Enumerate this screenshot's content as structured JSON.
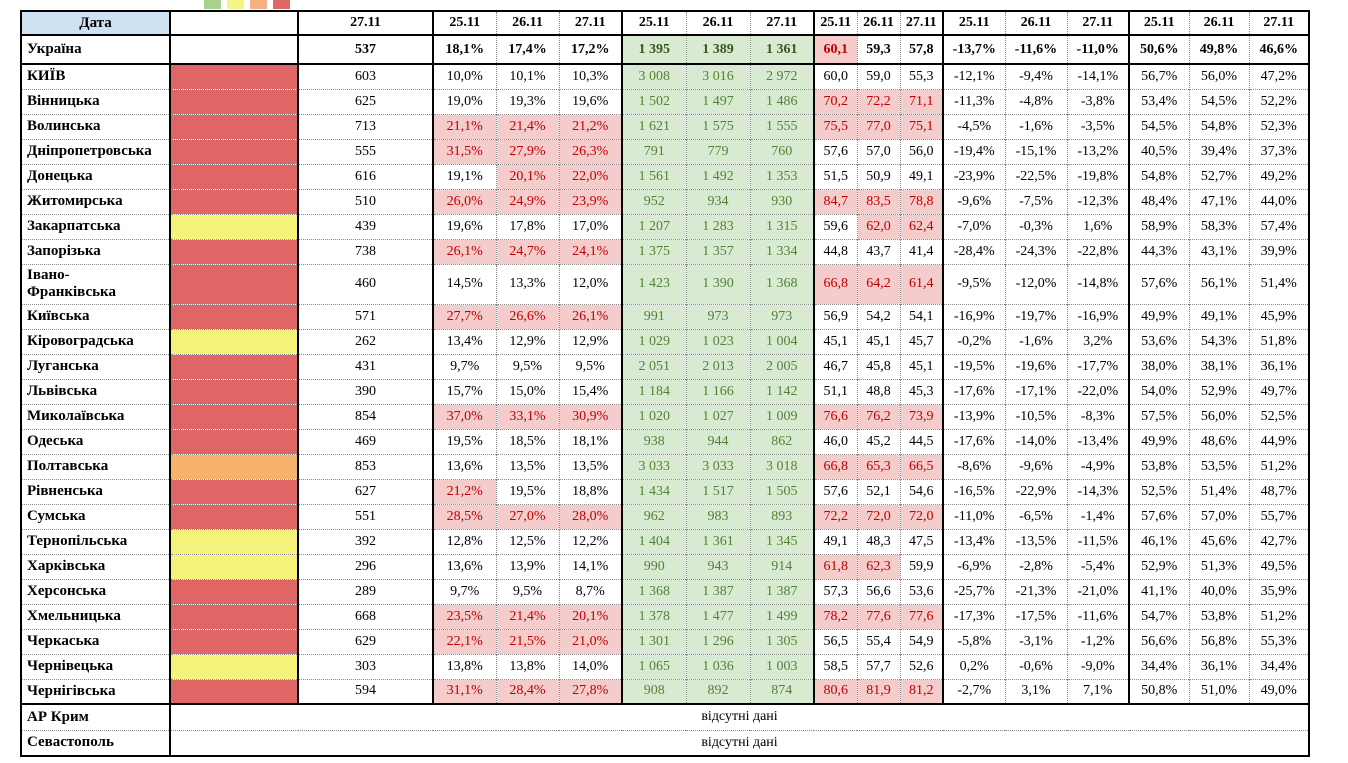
{
  "colors": {
    "header_blue": "#cfe2f3",
    "highlight_pink_bg": "#f4cccc",
    "highlight_red_text": "#c00000",
    "green_bg": "#d9ead3",
    "green_text": "#548235",
    "green_text_bold": "#375623",
    "fill_red": "#e06666",
    "fill_yellow": "#f4f27b",
    "fill_orange": "#f6b26b"
  },
  "chart_data": {
    "type": "table",
    "title": "",
    "header": {
      "date_label": "Дата",
      "single_date": "27.11",
      "group_dates": [
        "25.11",
        "26.11",
        "27.11"
      ],
      "num_groups": 5
    },
    "legend_swatches": [
      "#a9d18e",
      "#f5f584",
      "#f4b183",
      "#e06666"
    ],
    "fill_colors": {
      "red": "#e06666",
      "yellow": "#f4f27b",
      "orange": "#f6b26b"
    },
    "missing_data_text": "відсутні дані",
    "rows": [
      {
        "name": "Україна",
        "bold": true,
        "fill": null,
        "single": "537",
        "pct1": [
          "18,1%",
          "17,4%",
          "17,2%"
        ],
        "pct1_hl": [
          0,
          0,
          0
        ],
        "green": [
          "1 395",
          "1 389",
          "1 361"
        ],
        "dec": [
          "60,1",
          "59,3",
          "57,8"
        ],
        "dec_hl": [
          1,
          0,
          0
        ],
        "negpct": [
          "-13,7%",
          "-11,6%",
          "-11,0%"
        ],
        "pct2": [
          "50,6%",
          "49,8%",
          "46,6%"
        ]
      },
      {
        "name": "КИЇВ",
        "fill": "red",
        "single": "603",
        "pct1": [
          "10,0%",
          "10,1%",
          "10,3%"
        ],
        "pct1_hl": [
          0,
          0,
          0
        ],
        "green": [
          "3 008",
          "3 016",
          "2 972"
        ],
        "dec": [
          "60,0",
          "59,0",
          "55,3"
        ],
        "dec_hl": [
          0,
          0,
          0
        ],
        "negpct": [
          "-12,1%",
          "-9,4%",
          "-14,1%"
        ],
        "pct2": [
          "56,7%",
          "56,0%",
          "47,2%"
        ]
      },
      {
        "name": "Вінницька",
        "fill": "red",
        "single": "625",
        "pct1": [
          "19,0%",
          "19,3%",
          "19,6%"
        ],
        "pct1_hl": [
          0,
          0,
          0
        ],
        "green": [
          "1 502",
          "1 497",
          "1 486"
        ],
        "dec": [
          "70,2",
          "72,2",
          "71,1"
        ],
        "dec_hl": [
          1,
          1,
          1
        ],
        "negpct": [
          "-11,3%",
          "-4,8%",
          "-3,8%"
        ],
        "pct2": [
          "53,4%",
          "54,5%",
          "52,2%"
        ]
      },
      {
        "name": "Волинська",
        "fill": "red",
        "single": "713",
        "pct1": [
          "21,1%",
          "21,4%",
          "21,2%"
        ],
        "pct1_hl": [
          1,
          1,
          1
        ],
        "green": [
          "1 621",
          "1 575",
          "1 555"
        ],
        "dec": [
          "75,5",
          "77,0",
          "75,1"
        ],
        "dec_hl": [
          1,
          1,
          1
        ],
        "negpct": [
          "-4,5%",
          "-1,6%",
          "-3,5%"
        ],
        "pct2": [
          "54,5%",
          "54,8%",
          "52,3%"
        ]
      },
      {
        "name": "Дніпропетровська",
        "fill": "red",
        "single": "555",
        "pct1": [
          "31,5%",
          "27,9%",
          "26,3%"
        ],
        "pct1_hl": [
          1,
          1,
          1
        ],
        "green": [
          "791",
          "779",
          "760"
        ],
        "dec": [
          "57,6",
          "57,0",
          "56,0"
        ],
        "dec_hl": [
          0,
          0,
          0
        ],
        "negpct": [
          "-19,4%",
          "-15,1%",
          "-13,2%"
        ],
        "pct2": [
          "40,5%",
          "39,4%",
          "37,3%"
        ]
      },
      {
        "name": "Донецька",
        "fill": "red",
        "single": "616",
        "pct1": [
          "19,1%",
          "20,1%",
          "22,0%"
        ],
        "pct1_hl": [
          0,
          1,
          1
        ],
        "green": [
          "1 561",
          "1 492",
          "1 353"
        ],
        "dec": [
          "51,5",
          "50,9",
          "49,1"
        ],
        "dec_hl": [
          0,
          0,
          0
        ],
        "negpct": [
          "-23,9%",
          "-22,5%",
          "-19,8%"
        ],
        "pct2": [
          "54,8%",
          "52,7%",
          "49,2%"
        ]
      },
      {
        "name": "Житомирська",
        "fill": "red",
        "single": "510",
        "pct1": [
          "26,0%",
          "24,9%",
          "23,9%"
        ],
        "pct1_hl": [
          1,
          1,
          1
        ],
        "green": [
          "952",
          "934",
          "930"
        ],
        "dec": [
          "84,7",
          "83,5",
          "78,8"
        ],
        "dec_hl": [
          1,
          1,
          1
        ],
        "negpct": [
          "-9,6%",
          "-7,5%",
          "-12,3%"
        ],
        "pct2": [
          "48,4%",
          "47,1%",
          "44,0%"
        ]
      },
      {
        "name": "Закарпатська",
        "fill": "yellow",
        "single": "439",
        "pct1": [
          "19,6%",
          "17,8%",
          "17,0%"
        ],
        "pct1_hl": [
          0,
          0,
          0
        ],
        "green": [
          "1 207",
          "1 283",
          "1 315"
        ],
        "dec": [
          "59,6",
          "62,0",
          "62,4"
        ],
        "dec_hl": [
          0,
          1,
          1
        ],
        "negpct": [
          "-7,0%",
          "-0,3%",
          "1,6%"
        ],
        "pct2": [
          "58,9%",
          "58,3%",
          "57,4%"
        ]
      },
      {
        "name": "Запорізька",
        "fill": "red",
        "single": "738",
        "pct1": [
          "26,1%",
          "24,7%",
          "24,1%"
        ],
        "pct1_hl": [
          1,
          1,
          1
        ],
        "green": [
          "1 375",
          "1 357",
          "1 334"
        ],
        "dec": [
          "44,8",
          "43,7",
          "41,4"
        ],
        "dec_hl": [
          0,
          0,
          0
        ],
        "negpct": [
          "-28,4%",
          "-24,3%",
          "-22,8%"
        ],
        "pct2": [
          "44,3%",
          "43,1%",
          "39,9%"
        ]
      },
      {
        "name": "Івано-\nФранківська",
        "tall": true,
        "fill": "red",
        "single": "460",
        "pct1": [
          "14,5%",
          "13,3%",
          "12,0%"
        ],
        "pct1_hl": [
          0,
          0,
          0
        ],
        "green": [
          "1 423",
          "1 390",
          "1 368"
        ],
        "dec": [
          "66,8",
          "64,2",
          "61,4"
        ],
        "dec_hl": [
          1,
          1,
          1
        ],
        "negpct": [
          "-9,5%",
          "-12,0%",
          "-14,8%"
        ],
        "pct2": [
          "57,6%",
          "56,1%",
          "51,4%"
        ]
      },
      {
        "name": "Київська",
        "fill": "red",
        "single": "571",
        "pct1": [
          "27,7%",
          "26,6%",
          "26,1%"
        ],
        "pct1_hl": [
          1,
          1,
          1
        ],
        "green": [
          "991",
          "973",
          "973"
        ],
        "dec": [
          "56,9",
          "54,2",
          "54,1"
        ],
        "dec_hl": [
          0,
          0,
          0
        ],
        "negpct": [
          "-16,9%",
          "-19,7%",
          "-16,9%"
        ],
        "pct2": [
          "49,9%",
          "49,1%",
          "45,9%"
        ]
      },
      {
        "name": "Кіровоградська",
        "fill": "yellow",
        "single": "262",
        "pct1": [
          "13,4%",
          "12,9%",
          "12,9%"
        ],
        "pct1_hl": [
          0,
          0,
          0
        ],
        "green": [
          "1 029",
          "1 023",
          "1 004"
        ],
        "dec": [
          "45,1",
          "45,1",
          "45,7"
        ],
        "dec_hl": [
          0,
          0,
          0
        ],
        "negpct": [
          "-0,2%",
          "-1,6%",
          "3,2%"
        ],
        "pct2": [
          "53,6%",
          "54,3%",
          "51,8%"
        ]
      },
      {
        "name": "Луганська",
        "fill": "red",
        "single": "431",
        "pct1": [
          "9,7%",
          "9,5%",
          "9,5%"
        ],
        "pct1_hl": [
          0,
          0,
          0
        ],
        "green": [
          "2 051",
          "2 013",
          "2 005"
        ],
        "dec": [
          "46,7",
          "45,8",
          "45,1"
        ],
        "dec_hl": [
          0,
          0,
          0
        ],
        "negpct": [
          "-19,5%",
          "-19,6%",
          "-17,7%"
        ],
        "pct2": [
          "38,0%",
          "38,1%",
          "36,1%"
        ]
      },
      {
        "name": "Львівська",
        "fill": "red",
        "single": "390",
        "pct1": [
          "15,7%",
          "15,0%",
          "15,4%"
        ],
        "pct1_hl": [
          0,
          0,
          0
        ],
        "green": [
          "1 184",
          "1 166",
          "1 142"
        ],
        "dec": [
          "51,1",
          "48,8",
          "45,3"
        ],
        "dec_hl": [
          0,
          0,
          0
        ],
        "negpct": [
          "-17,6%",
          "-17,1%",
          "-22,0%"
        ],
        "pct2": [
          "54,0%",
          "52,9%",
          "49,7%"
        ]
      },
      {
        "name": "Миколаївська",
        "fill": "red",
        "single": "854",
        "pct1": [
          "37,0%",
          "33,1%",
          "30,9%"
        ],
        "pct1_hl": [
          1,
          1,
          1
        ],
        "green": [
          "1 020",
          "1 027",
          "1 009"
        ],
        "dec": [
          "76,6",
          "76,2",
          "73,9"
        ],
        "dec_hl": [
          1,
          1,
          1
        ],
        "negpct": [
          "-13,9%",
          "-10,5%",
          "-8,3%"
        ],
        "pct2": [
          "57,5%",
          "56,0%",
          "52,5%"
        ]
      },
      {
        "name": "Одеська",
        "fill": "red",
        "single": "469",
        "pct1": [
          "19,5%",
          "18,5%",
          "18,1%"
        ],
        "pct1_hl": [
          0,
          0,
          0
        ],
        "green": [
          "938",
          "944",
          "862"
        ],
        "dec": [
          "46,0",
          "45,2",
          "44,5"
        ],
        "dec_hl": [
          0,
          0,
          0
        ],
        "negpct": [
          "-17,6%",
          "-14,0%",
          "-13,4%"
        ],
        "pct2": [
          "49,9%",
          "48,6%",
          "44,9%"
        ]
      },
      {
        "name": "Полтавська",
        "fill": "orange",
        "single": "853",
        "pct1": [
          "13,6%",
          "13,5%",
          "13,5%"
        ],
        "pct1_hl": [
          0,
          0,
          0
        ],
        "green": [
          "3 033",
          "3 033",
          "3 018"
        ],
        "dec": [
          "66,8",
          "65,3",
          "66,5"
        ],
        "dec_hl": [
          1,
          1,
          1
        ],
        "negpct": [
          "-8,6%",
          "-9,6%",
          "-4,9%"
        ],
        "pct2": [
          "53,8%",
          "53,5%",
          "51,2%"
        ]
      },
      {
        "name": "Рівненська",
        "fill": "red",
        "single": "627",
        "pct1": [
          "21,2%",
          "19,5%",
          "18,8%"
        ],
        "pct1_hl": [
          1,
          0,
          0
        ],
        "green": [
          "1 434",
          "1 517",
          "1 505"
        ],
        "dec": [
          "57,6",
          "52,1",
          "54,6"
        ],
        "dec_hl": [
          0,
          0,
          0
        ],
        "negpct": [
          "-16,5%",
          "-22,9%",
          "-14,3%"
        ],
        "pct2": [
          "52,5%",
          "51,4%",
          "48,7%"
        ]
      },
      {
        "name": "Сумська",
        "fill": "red",
        "single": "551",
        "pct1": [
          "28,5%",
          "27,0%",
          "28,0%"
        ],
        "pct1_hl": [
          1,
          1,
          1
        ],
        "green": [
          "962",
          "983",
          "893"
        ],
        "dec": [
          "72,2",
          "72,0",
          "72,0"
        ],
        "dec_hl": [
          1,
          1,
          1
        ],
        "negpct": [
          "-11,0%",
          "-6,5%",
          "-1,4%"
        ],
        "pct2": [
          "57,6%",
          "57,0%",
          "55,7%"
        ]
      },
      {
        "name": "Тернопільська",
        "fill": "yellow",
        "single": "392",
        "pct1": [
          "12,8%",
          "12,5%",
          "12,2%"
        ],
        "pct1_hl": [
          0,
          0,
          0
        ],
        "green": [
          "1 404",
          "1 361",
          "1 345"
        ],
        "dec": [
          "49,1",
          "48,3",
          "47,5"
        ],
        "dec_hl": [
          0,
          0,
          0
        ],
        "negpct": [
          "-13,4%",
          "-13,5%",
          "-11,5%"
        ],
        "pct2": [
          "46,1%",
          "45,6%",
          "42,7%"
        ]
      },
      {
        "name": "Харківська",
        "fill": "yellow",
        "single": "296",
        "pct1": [
          "13,6%",
          "13,9%",
          "14,1%"
        ],
        "pct1_hl": [
          0,
          0,
          0
        ],
        "green": [
          "990",
          "943",
          "914"
        ],
        "dec": [
          "61,8",
          "62,3",
          "59,9"
        ],
        "dec_hl": [
          1,
          1,
          0
        ],
        "negpct": [
          "-6,9%",
          "-2,8%",
          "-5,4%"
        ],
        "pct2": [
          "52,9%",
          "51,3%",
          "49,5%"
        ]
      },
      {
        "name": "Херсонська",
        "fill": "red",
        "single": "289",
        "pct1": [
          "9,7%",
          "9,5%",
          "8,7%"
        ],
        "pct1_hl": [
          0,
          0,
          0
        ],
        "green": [
          "1 368",
          "1 387",
          "1 387"
        ],
        "dec": [
          "57,3",
          "56,6",
          "53,6"
        ],
        "dec_hl": [
          0,
          0,
          0
        ],
        "negpct": [
          "-25,7%",
          "-21,3%",
          "-21,0%"
        ],
        "pct2": [
          "41,1%",
          "40,0%",
          "35,9%"
        ]
      },
      {
        "name": "Хмельницька",
        "fill": "red",
        "single": "668",
        "pct1": [
          "23,5%",
          "21,4%",
          "20,1%"
        ],
        "pct1_hl": [
          1,
          1,
          1
        ],
        "green": [
          "1 378",
          "1 477",
          "1 499"
        ],
        "dec": [
          "78,2",
          "77,6",
          "77,6"
        ],
        "dec_hl": [
          1,
          1,
          1
        ],
        "negpct": [
          "-17,3%",
          "-17,5%",
          "-11,6%"
        ],
        "pct2": [
          "54,7%",
          "53,8%",
          "51,2%"
        ]
      },
      {
        "name": "Черкаська",
        "fill": "red",
        "single": "629",
        "pct1": [
          "22,1%",
          "21,5%",
          "21,0%"
        ],
        "pct1_hl": [
          1,
          1,
          1
        ],
        "green": [
          "1 301",
          "1 296",
          "1 305"
        ],
        "dec": [
          "56,5",
          "55,4",
          "54,9"
        ],
        "dec_hl": [
          0,
          0,
          0
        ],
        "negpct": [
          "-5,8%",
          "-3,1%",
          "-1,2%"
        ],
        "pct2": [
          "56,6%",
          "56,8%",
          "55,3%"
        ]
      },
      {
        "name": "Чернівецька",
        "fill": "yellow",
        "single": "303",
        "pct1": [
          "13,8%",
          "13,8%",
          "14,0%"
        ],
        "pct1_hl": [
          0,
          0,
          0
        ],
        "green": [
          "1 065",
          "1 036",
          "1 003"
        ],
        "dec": [
          "58,5",
          "57,7",
          "52,6"
        ],
        "dec_hl": [
          0,
          0,
          0
        ],
        "negpct": [
          "0,2%",
          "-0,6%",
          "-9,0%"
        ],
        "pct2": [
          "34,4%",
          "36,1%",
          "34,4%"
        ]
      },
      {
        "name": "Чернігівська",
        "fill": "red",
        "single": "594",
        "pct1": [
          "31,1%",
          "28,4%",
          "27,8%"
        ],
        "pct1_hl": [
          1,
          1,
          1
        ],
        "green": [
          "908",
          "892",
          "874"
        ],
        "dec": [
          "80,6",
          "81,9",
          "81,2"
        ],
        "dec_hl": [
          1,
          1,
          1
        ],
        "negpct": [
          "-2,7%",
          "3,1%",
          "7,1%"
        ],
        "pct2": [
          "50,8%",
          "51,0%",
          "49,0%"
        ]
      }
    ],
    "no_data_rows": [
      {
        "name": "АР Крим",
        "text": "відсутні дані"
      },
      {
        "name": "Севастополь",
        "text": "відсутні дані"
      }
    ]
  }
}
